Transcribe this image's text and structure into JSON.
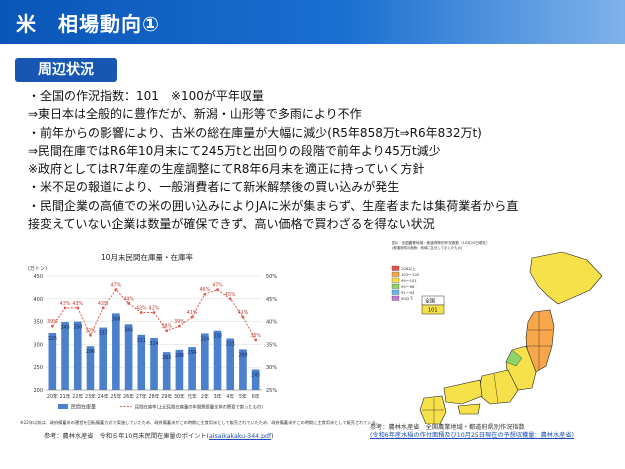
{
  "header": {
    "title": "米　相場動向①"
  },
  "section": {
    "tag": "周辺状況"
  },
  "bullets": [
    "・全国の作況指数：101　※100が平年収量",
    "⇒東日本は全般的に豊作だが、新潟・山形等で多雨により不作",
    "・前年からの影響により、古米の総在庫量が大幅に減少(R5年858万t⇒R6年832万t)",
    "⇒民間在庫ではR6年10月末にて245万tと出回りの段階で前年より45万t減少",
    "※政府としてはR7年産の生産調整にてR8年6月末を適正に持っていく方針",
    "・米不足の報道により、一般消費者にて新米解禁後の買い込みが発生",
    "・民間企業の高値での米の囲い込みによりJAに米が集まらず、生産者または集荷業者から直",
    "接変えていない企業は数量が確保できず、高い価格で買わざるを得ない状況"
  ],
  "chart_data": {
    "type": "bar",
    "title": "10月末民間在庫量・在庫率",
    "unit_label": "(万トン)",
    "categories": [
      "20年",
      "21年",
      "22年",
      "23年",
      "24年",
      "25年",
      "26年",
      "27年",
      "28年",
      "29年",
      "30年",
      "元年",
      "2年",
      "3年",
      "4年",
      "5年",
      "6年"
    ],
    "series": [
      {
        "name": "民間在庫量",
        "type": "bar",
        "values": [
          325,
          349,
          350,
          296,
          337,
          368,
          344,
          321,
          314,
          283,
          288,
          294,
          324,
          330,
          313,
          289,
          245
        ]
      },
      {
        "name": "民間在庫率(上記民間在庫量の年間需要量全体の需要で割ったもの)",
        "type": "line",
        "values": [
          39,
          43,
          43,
          37,
          43,
          47,
          44,
          42,
          42,
          38,
          39,
          41,
          46,
          47,
          45,
          41,
          36
        ]
      }
    ],
    "ylim_left": [
      200,
      450
    ],
    "yticks_left": [
      200,
      250,
      300,
      350,
      400,
      450
    ],
    "ylim_right": [
      25,
      50
    ],
    "yticks_right": [
      "25%",
      "30%",
      "35%",
      "40%",
      "45%",
      "50%"
    ],
    "colors": {
      "bar": "#4a80cc",
      "line": "#e8584a"
    }
  },
  "notes": {
    "chart_footnote": "※22年以前は、政府備蓄米の運営を回転備蓄方式で実施していたため、政府備蓄米がこの時期に主食用米として販売されていたため、政府備蓄米がこの時期に主食用米として販売されている。",
    "source_chart_prefix": "参考：農林水産省　令和６年10月末民間在庫量のポイント(",
    "source_chart_link": "aisaikakaku-344.pdf",
    "source_chart_suffix": ")",
    "source_map_line1": "参考：農林水産省　全国農業地域・都道府県別作況指数",
    "source_map_line2": "(令和6年産水稲の作付面積及び10月25日現在の予想収穫量：農林水産省)"
  },
  "map": {
    "title": "図2　全国農業地域・都道府県別作況指数（10月25日現在）",
    "subtitle": "(都道府県の面積：地域に区分して示したもの)",
    "national_label": "全国",
    "national_value": "101",
    "legend": [
      {
        "label": "106以上",
        "color": "#e8524a"
      },
      {
        "label": "102〜105",
        "color": "#f7a64a"
      },
      {
        "label": "99〜101",
        "color": "#f6e14a"
      },
      {
        "label": "95〜98",
        "color": "#8fd46a"
      },
      {
        "label": "91〜94",
        "color": "#6ab8e8"
      },
      {
        "label": "90以下",
        "color": "#c47bd8"
      }
    ]
  }
}
